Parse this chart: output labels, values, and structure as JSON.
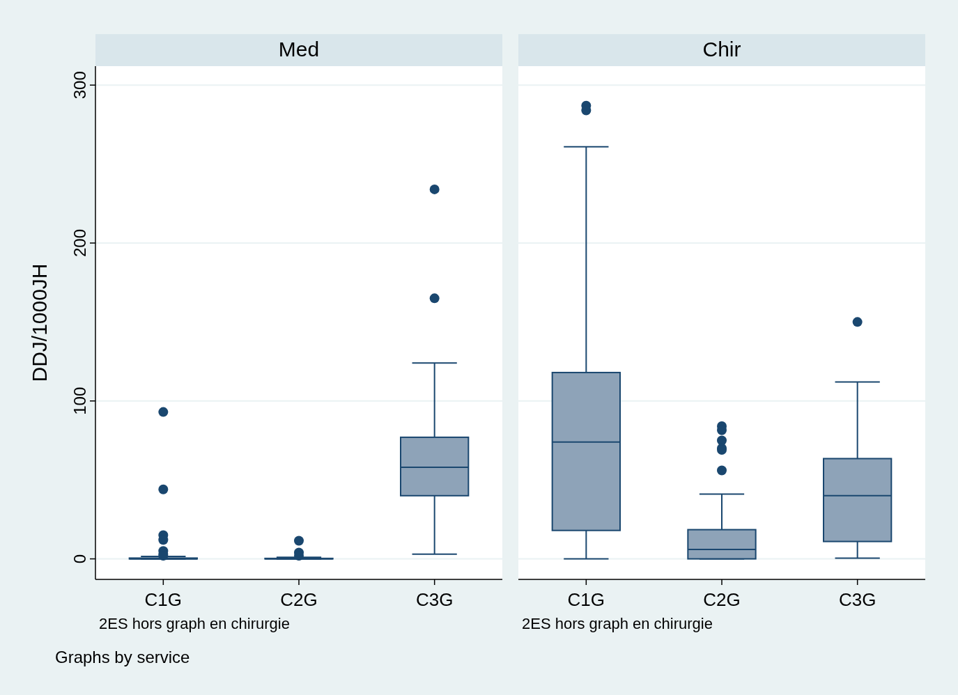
{
  "chart_data": [
    {
      "type": "box",
      "title": "Med",
      "categories": [
        "C1G",
        "C2G",
        "C3G"
      ],
      "xlabel": "2ES hors graph en chirurgie",
      "ylabel": "DDJ/1000JH",
      "ylim": [
        -13,
        312
      ],
      "yticks": [
        0,
        100,
        200,
        300
      ],
      "grid": "y",
      "color": "#8ea3b8",
      "annotations": [
        "Graphs by service"
      ],
      "boxes": [
        {
          "low": 0,
          "q1": 0,
          "median": 0,
          "q3": 0.5,
          "high": 1.5,
          "outliers": [
            93,
            44,
            15,
            12,
            5,
            3,
            2
          ]
        },
        {
          "low": 0,
          "q1": 0,
          "median": 0,
          "q3": 0.3,
          "high": 1,
          "outliers": [
            11.5,
            4,
            2
          ]
        },
        {
          "low": 3,
          "q1": 40,
          "median": 58,
          "q3": 77,
          "high": 124,
          "outliers": [
            234,
            165
          ]
        }
      ]
    },
    {
      "type": "box",
      "title": "Chir",
      "categories": [
        "C1G",
        "C2G",
        "C3G"
      ],
      "xlabel": "2ES hors graph en chirurgie",
      "ylim": [
        -13,
        312
      ],
      "yticks": [
        0,
        100,
        200,
        300
      ],
      "grid": "y",
      "tick_labels": "x",
      "color": "#8ea3b8",
      "boxes": [
        {
          "low": 0,
          "q1": 18,
          "median": 74,
          "q3": 118,
          "high": 261,
          "outliers": [
            287,
            284
          ]
        },
        {
          "low": 0,
          "q1": 0,
          "median": 6,
          "q3": 18.5,
          "high": 41,
          "outliers": [
            84,
            81.5,
            75,
            70,
            69,
            56
          ]
        },
        {
          "low": 0.5,
          "q1": 11,
          "median": 40,
          "q3": 63.5,
          "high": 112,
          "outliers": [
            150
          ]
        }
      ]
    }
  ]
}
